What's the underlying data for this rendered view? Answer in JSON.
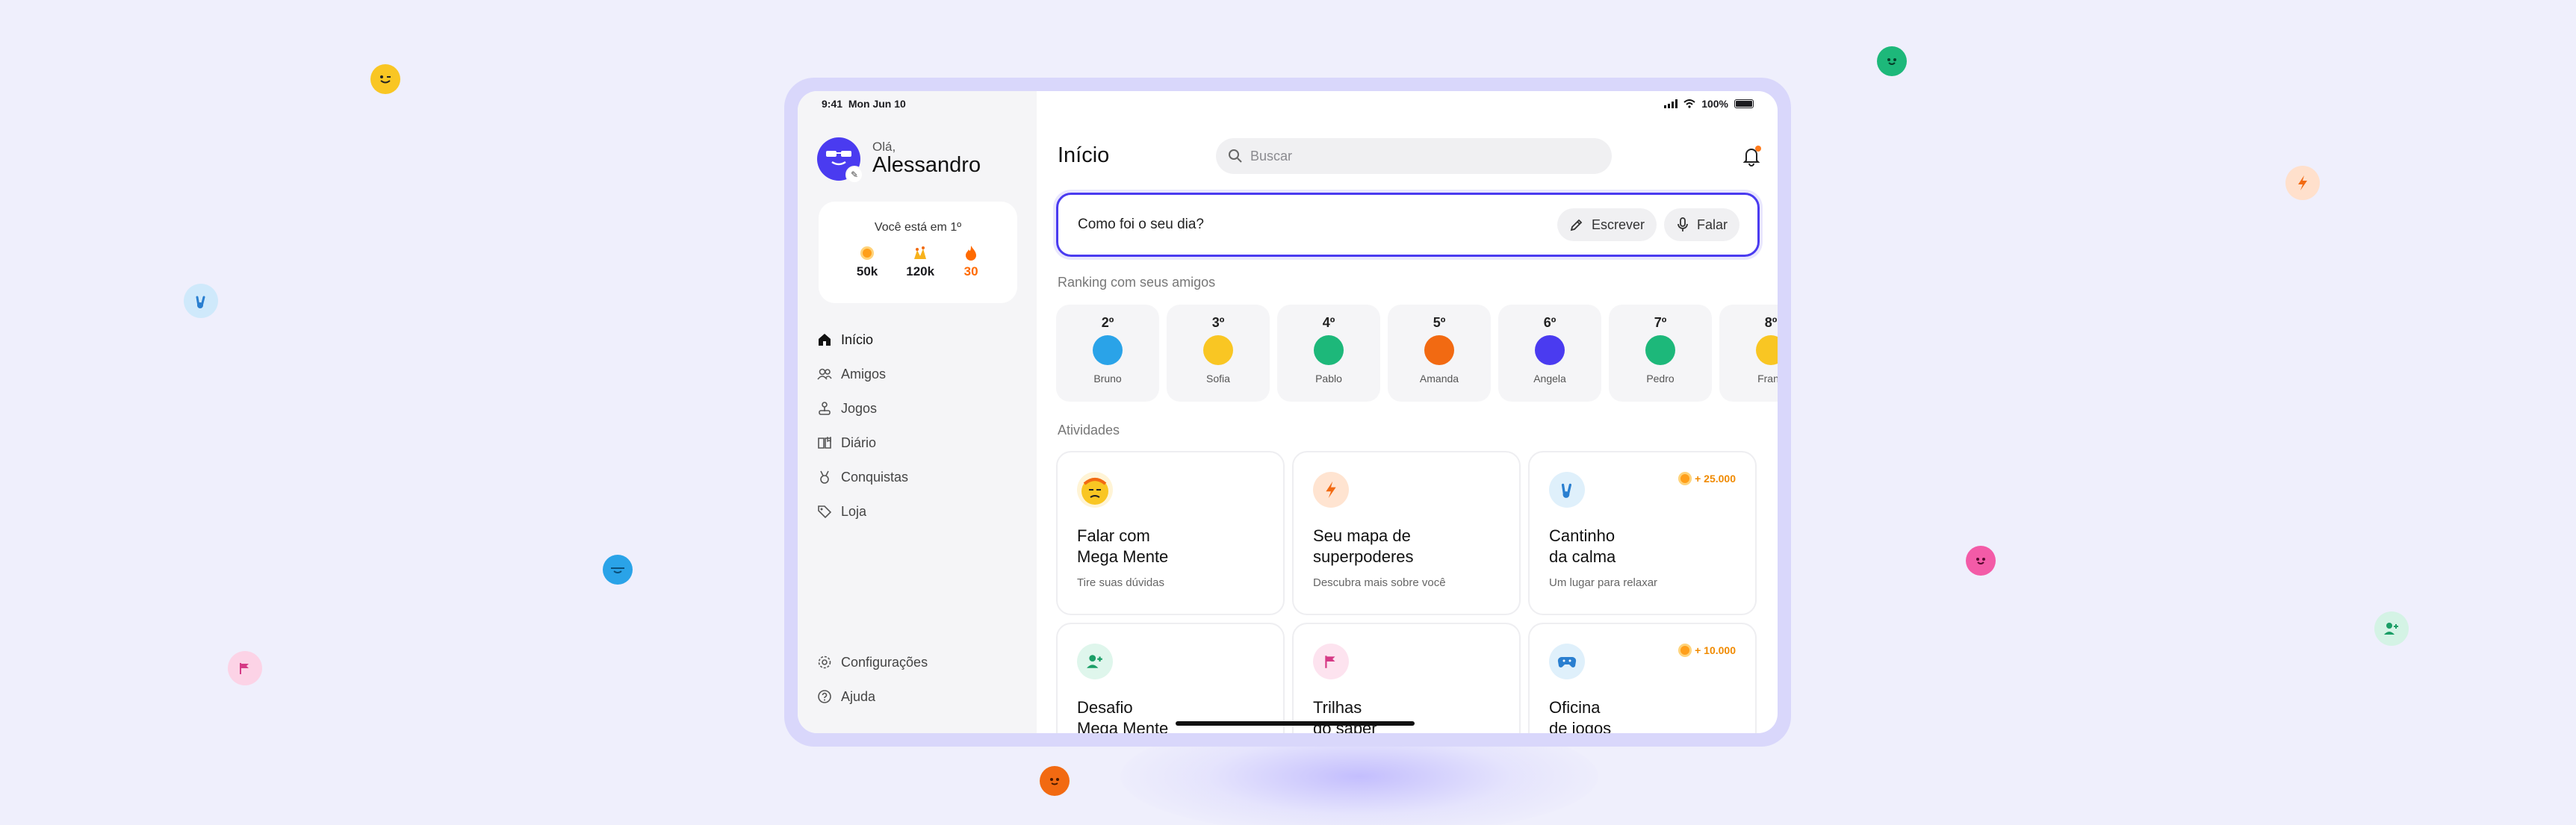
{
  "status": {
    "time": "9:41",
    "date": "Mon Jun 10",
    "battery": "100%"
  },
  "profile": {
    "greeting": "Olá,",
    "name": "Alessandro"
  },
  "rank_card": {
    "position_text": "Você está em 1º",
    "stats": [
      {
        "icon": "coin-icon",
        "value": "50k",
        "color": "#ff9f1a"
      },
      {
        "icon": "trophy-icon",
        "value": "120k",
        "color": "#f7b21d"
      },
      {
        "icon": "flame-icon",
        "value": "30",
        "color": "#ff6a00"
      }
    ]
  },
  "nav": {
    "items": [
      {
        "label": "Início",
        "icon": "home-icon",
        "active": true
      },
      {
        "label": "Amigos",
        "icon": "friends-icon"
      },
      {
        "label": "Jogos",
        "icon": "joystick-icon"
      },
      {
        "label": "Diário",
        "icon": "diary-icon"
      },
      {
        "label": "Conquistas",
        "icon": "medal-icon"
      },
      {
        "label": "Loja",
        "icon": "tag-icon"
      }
    ],
    "bottom": [
      {
        "label": "Configurações",
        "icon": "gear-icon"
      },
      {
        "label": "Ajuda",
        "icon": "help-icon"
      }
    ]
  },
  "main": {
    "title": "Início",
    "search_placeholder": "Buscar",
    "ask": {
      "question": "Como foi o seu dia?",
      "write_label": "Escrever",
      "speak_label": "Falar"
    },
    "ranking_title": "Ranking com seus amigos",
    "friends": [
      {
        "rank": "2º",
        "name": "Bruno",
        "color": "#2aa3e8"
      },
      {
        "rank": "3º",
        "name": "Sofia",
        "color": "#f9c623"
      },
      {
        "rank": "4º",
        "name": "Pablo",
        "color": "#1db87a"
      },
      {
        "rank": "5º",
        "name": "Amanda",
        "color": "#f26a12"
      },
      {
        "rank": "6º",
        "name": "Angela",
        "color": "#4a3bf0"
      },
      {
        "rank": "7º",
        "name": "Pedro",
        "color": "#1db87a"
      },
      {
        "rank": "8º",
        "name": "Franc",
        "color": "#f9c623"
      }
    ],
    "activities_title": "Atividades",
    "activities": [
      {
        "title": "Falar com\nMega Mente",
        "subtitle": "Tire suas dúvidas",
        "icon": "mega-mente-icon",
        "icon_bg": "#fff4d6",
        "reward": ""
      },
      {
        "title": "Seu mapa de\nsuperpoderes",
        "subtitle": "Descubra mais sobre você",
        "icon": "lightning-icon",
        "icon_bg": "#ffe4d1",
        "reward": ""
      },
      {
        "title": "Cantinho\nda calma",
        "subtitle": "Um lugar para relaxar",
        "icon": "peace-hand-icon",
        "icon_bg": "#dff0fb",
        "reward": "+ 25.000"
      },
      {
        "title": "Desafio\nMega Mente",
        "subtitle": "",
        "icon": "add-friend-icon",
        "icon_bg": "#dff6ec",
        "reward": ""
      },
      {
        "title": "Trilhas\ndo saber",
        "subtitle": "",
        "icon": "flag-icon",
        "icon_bg": "#fde3ef",
        "reward": ""
      },
      {
        "title": "Oficina\nde jogos",
        "subtitle": "",
        "icon": "gamepad-icon",
        "icon_bg": "#dff0fb",
        "reward": "+ 10.000"
      }
    ]
  }
}
